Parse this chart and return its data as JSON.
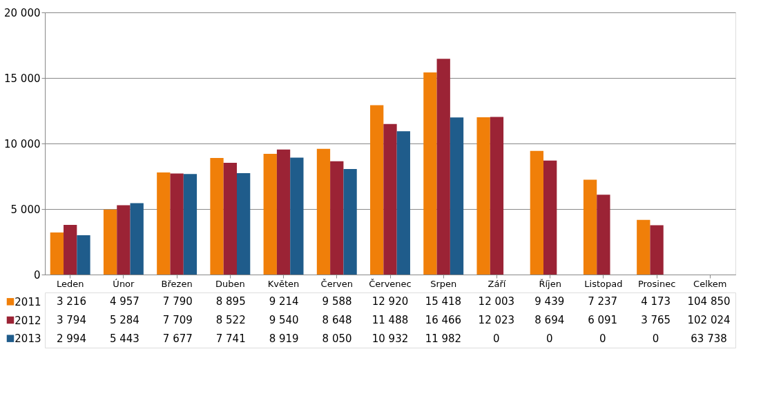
{
  "chart_data": {
    "type": "bar",
    "categories": [
      "Leden",
      "Únor",
      "Březen",
      "Duben",
      "Květen",
      "Červen",
      "Červenec",
      "Srpen",
      "Září",
      "Říjen",
      "Listopad",
      "Prosinec",
      "Celkem"
    ],
    "series": [
      {
        "name": "2011",
        "color": "#f07f09",
        "values": [
          3216,
          4957,
          7790,
          8895,
          9214,
          9588,
          12920,
          15418,
          12003,
          9439,
          7237,
          4173,
          null
        ],
        "value_labels": [
          "3 216",
          "4 957",
          "7 790",
          "8 895",
          "9 214",
          "9 588",
          "12 920",
          "15 418",
          "12 003",
          "9 439",
          "7 237",
          "4 173",
          "104 850"
        ]
      },
      {
        "name": "2012",
        "color": "#9b2335",
        "values": [
          3794,
          5284,
          7709,
          8522,
          9540,
          8648,
          11488,
          16466,
          12023,
          8694,
          6091,
          3765,
          null
        ],
        "value_labels": [
          "3 794",
          "5 284",
          "7 709",
          "8 522",
          "9 540",
          "8 648",
          "11 488",
          "16 466",
          "12 023",
          "8 694",
          "6 091",
          "3 765",
          "102 024"
        ]
      },
      {
        "name": "2013",
        "color": "#1f5c8b",
        "values": [
          2994,
          5443,
          7677,
          7741,
          8919,
          8050,
          10932,
          11982,
          0,
          0,
          0,
          0,
          null
        ],
        "value_labels": [
          "2 994",
          "5 443",
          "7 677",
          "7 741",
          "8 919",
          "8 050",
          "10 932",
          "11 982",
          "0",
          "0",
          "0",
          "0",
          "63 738"
        ]
      }
    ],
    "ylim": [
      0,
      20000
    ],
    "yticks": [
      0,
      {
        "value": 5000,
        "label": "5 000"
      },
      {
        "value": 10000,
        "label": "10 000"
      },
      {
        "value": 15000,
        "label": "15 000"
      },
      {
        "value": 20000,
        "label": "20 000"
      }
    ],
    "grid": "y",
    "legend": "bottom left"
  }
}
